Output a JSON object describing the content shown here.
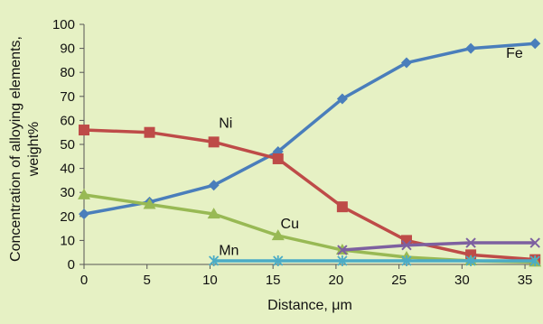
{
  "chart_data": {
    "type": "line",
    "title": "",
    "xlabel": "Distance, μm",
    "ylabel": [
      "Concentration of alloying elements,",
      "weight%"
    ],
    "xlim": [
      0,
      36
    ],
    "ylim": [
      0,
      100
    ],
    "xticks": [
      0,
      5,
      10,
      15,
      20,
      25,
      30,
      35
    ],
    "yticks": [
      0,
      10,
      20,
      30,
      40,
      50,
      60,
      70,
      80,
      90,
      100
    ],
    "grid": false,
    "legend": "inline labels",
    "series": [
      {
        "name": "Fe",
        "color": "#4a7ebb",
        "marker": "diamond",
        "x": [
          0,
          5.2,
          10.3,
          15.4,
          20.5,
          25.6,
          30.7,
          35.8
        ],
        "y": [
          21,
          26,
          33,
          47,
          69,
          84,
          90,
          92
        ]
      },
      {
        "name": "Ni",
        "color": "#be4b48",
        "marker": "square",
        "x": [
          0,
          5.2,
          10.3,
          15.4,
          20.5,
          25.6,
          30.7,
          35.8
        ],
        "y": [
          56,
          55,
          51,
          44,
          24,
          10,
          4,
          2
        ]
      },
      {
        "name": "Cu",
        "color": "#98b954",
        "marker": "triangle",
        "x": [
          0,
          5.2,
          10.3,
          15.4,
          20.5,
          25.6,
          30.7,
          35.8
        ],
        "y": [
          29,
          25,
          21,
          12,
          6,
          3,
          1.5,
          1
        ]
      },
      {
        "name": "",
        "color": "#7d60a0",
        "marker": "x",
        "x": [
          20.5,
          25.6,
          30.7,
          35.8
        ],
        "y": [
          6,
          8,
          9,
          9
        ]
      },
      {
        "name": "Mn",
        "color": "#4bacc6",
        "marker": "star",
        "x": [
          10.3,
          15.4,
          20.5,
          25.6,
          30.7,
          35.8
        ],
        "y": [
          1.5,
          1.5,
          1.5,
          1.5,
          1.5,
          1.5
        ]
      }
    ],
    "annotations": [
      {
        "text": "Fe",
        "x": 33.5,
        "y": 86
      },
      {
        "text": "Ni",
        "x": 10.7,
        "y": 57
      },
      {
        "text": "Cu",
        "x": 15.6,
        "y": 15
      },
      {
        "text": "Mn",
        "x": 10.7,
        "y": 4
      }
    ]
  }
}
